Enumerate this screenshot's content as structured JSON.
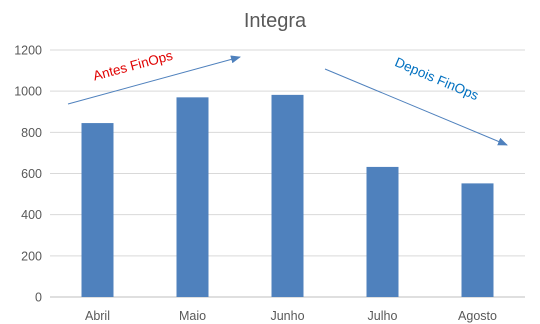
{
  "chart_data": {
    "type": "bar",
    "title": "Integra",
    "categories": [
      "Abril",
      "Maio",
      "Junho",
      "Julho",
      "Agosto"
    ],
    "values": [
      845,
      970,
      982,
      632,
      552
    ],
    "ylim": [
      0,
      1200
    ],
    "yticks": [
      0,
      200,
      400,
      600,
      800,
      1000,
      1200
    ],
    "grid": true,
    "legend": "none",
    "bar_color": "#4F81BD",
    "annotations": [
      {
        "text": "Antes FinOps",
        "color": "#E00000",
        "arrow_color": "#4F81BD",
        "direction": "up"
      },
      {
        "text": "Depois FinOps",
        "color": "#0070C0",
        "arrow_color": "#4F81BD",
        "direction": "down"
      }
    ]
  }
}
